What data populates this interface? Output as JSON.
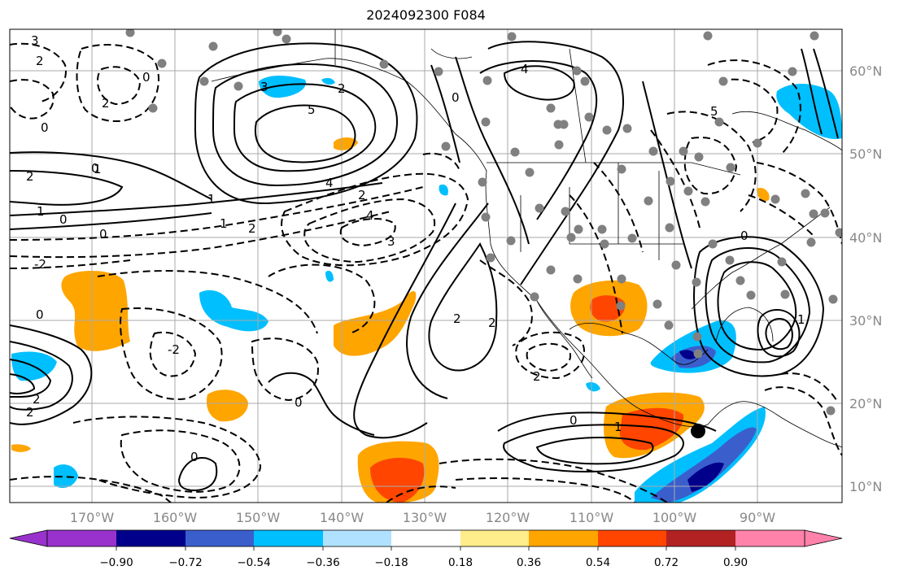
{
  "title": "2024092300 F084",
  "lon_ticks": [
    "170°W",
    "160°W",
    "150°W",
    "140°W",
    "130°W",
    "120°W",
    "110°W",
    "100°W",
    "90°W"
  ],
  "lat_ticks": [
    "60°N",
    "50°N",
    "40°N",
    "30°N",
    "20°N",
    "10°N"
  ],
  "colorbar": {
    "labels": [
      "−0.90",
      "−0.72",
      "−0.54",
      "−0.36",
      "−0.18",
      "0.18",
      "0.36",
      "0.54",
      "0.72",
      "0.90"
    ],
    "colors": [
      "#9932cc",
      "#00008b",
      "#3a5fcd",
      "#00bfff",
      "#b0e2ff",
      "#ffffff",
      "#ffec8b",
      "#ffa500",
      "#ff4500",
      "#b22222",
      "#ff82ab"
    ]
  },
  "contour_labels": [
    "3",
    "2",
    "2",
    "0",
    "0",
    "1",
    "2",
    "1",
    "1",
    "3",
    "2",
    "5",
    "4",
    "2",
    "0",
    "1",
    "0",
    "-2",
    "0",
    "2",
    "4",
    "3",
    "0",
    "2",
    "2",
    "-2",
    "0",
    "0",
    "1",
    "2",
    "2",
    "0",
    "0",
    "2",
    "4",
    "5",
    "0",
    "1"
  ],
  "colors": {
    "axis_text": "#888888",
    "grid": "#aaaaaa",
    "marker_gray": "#808080",
    "marker_black": "#000000"
  }
}
